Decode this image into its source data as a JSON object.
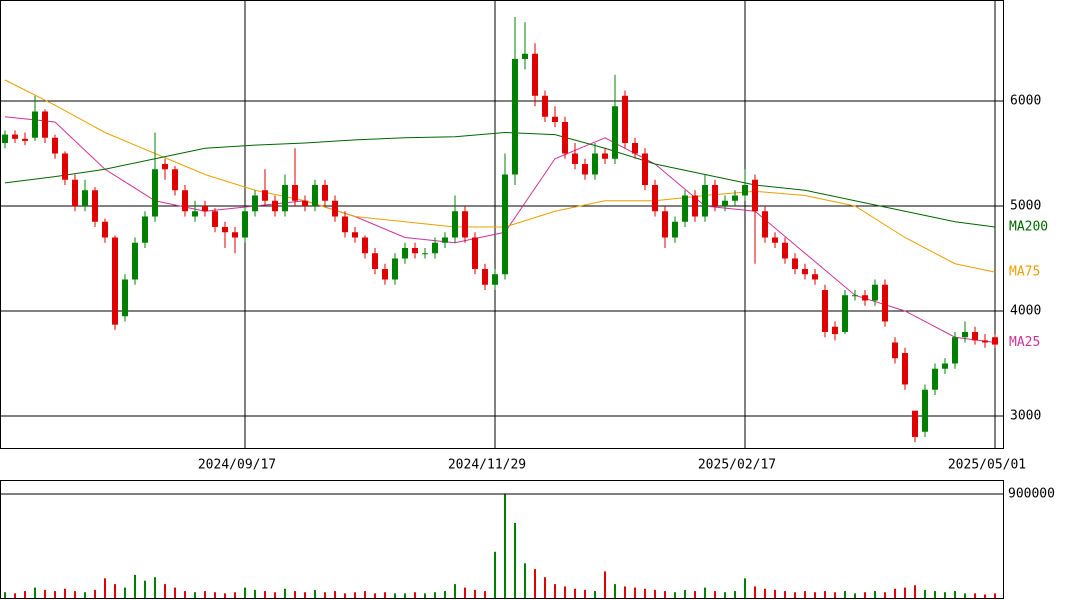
{
  "chart_data": [
    {
      "type": "candlestick",
      "categories": [
        null,
        null,
        null,
        null,
        null,
        null,
        null,
        null,
        null,
        null,
        null,
        null,
        null,
        null,
        null,
        null,
        null,
        null,
        null,
        null,
        null,
        null,
        null,
        null,
        "2024/09/17",
        null,
        null,
        null,
        null,
        null,
        null,
        null,
        null,
        null,
        null,
        null,
        null,
        null,
        null,
        null,
        null,
        null,
        null,
        null,
        null,
        null,
        null,
        null,
        null,
        "2024/11/29",
        null,
        null,
        null,
        null,
        null,
        null,
        null,
        null,
        null,
        null,
        null,
        null,
        null,
        null,
        null,
        null,
        null,
        null,
        null,
        null,
        null,
        null,
        null,
        null,
        "2025/02/17",
        null,
        null,
        null,
        null,
        null,
        null,
        null,
        null,
        null,
        null,
        null,
        null,
        null,
        null,
        null,
        null,
        null,
        null,
        null,
        null,
        null,
        null,
        null,
        null,
        "2025/05/01"
      ],
      "open": [
        5600,
        5680,
        5640,
        5650,
        5900,
        5650,
        5500,
        5250,
        5000,
        5150,
        4850,
        4700,
        3950,
        4300,
        4650,
        4900,
        5400,
        5350,
        5150,
        4900,
        5000,
        4950,
        4800,
        4750,
        4700,
        4950,
        5150,
        5050,
        4950,
        5200,
        5050,
        5000,
        5200,
        5050,
        4900,
        4750,
        4700,
        4550,
        4400,
        4300,
        4500,
        4600,
        4550,
        4550,
        4650,
        4700,
        4950,
        4700,
        4400,
        4250,
        4350,
        5300,
        6400,
        6450,
        6050,
        5850,
        5800,
        5500,
        5400,
        5300,
        5500,
        5450,
        6050,
        5600,
        5500,
        5200,
        4950,
        4700,
        4850,
        5100,
        4900,
        5200,
        5000,
        5050,
        5100,
        5250,
        4950,
        4700,
        4650,
        4500,
        4400,
        4350,
        4200,
        3850,
        3800,
        4150,
        4150,
        4100,
        4250,
        3700,
        3600,
        3050,
        2850,
        3250,
        3450,
        3500,
        3750,
        3800,
        3720,
        3750
      ],
      "high": [
        5720,
        5720,
        5700,
        6050,
        5920,
        5680,
        5520,
        5300,
        5250,
        5180,
        4880,
        4720,
        4350,
        4700,
        4950,
        5700,
        5450,
        5380,
        5200,
        5050,
        5050,
        4980,
        4850,
        4800,
        5000,
        5150,
        5350,
        5100,
        5300,
        5550,
        5100,
        5250,
        5250,
        5100,
        4950,
        4800,
        4720,
        4600,
        4450,
        4550,
        4650,
        4650,
        4600,
        4700,
        4750,
        5100,
        5000,
        4750,
        4450,
        4400,
        5500,
        6800,
        6750,
        6550,
        6100,
        5950,
        5850,
        5600,
        5450,
        5600,
        5550,
        6250,
        6100,
        5650,
        5550,
        5250,
        5000,
        4900,
        5150,
        5150,
        5300,
        5250,
        5100,
        5150,
        5350,
        5300,
        5000,
        4750,
        4700,
        4550,
        4450,
        4400,
        4250,
        3900,
        4200,
        4200,
        4200,
        4300,
        4300,
        3750,
        3650,
        3050,
        3300,
        3500,
        3550,
        3800,
        3900,
        3850,
        3780,
        3780
      ],
      "low": [
        5550,
        5600,
        5580,
        5620,
        5600,
        5450,
        5200,
        4950,
        4950,
        4800,
        4650,
        3820,
        3900,
        4250,
        4600,
        4850,
        5250,
        5100,
        4900,
        4850,
        4900,
        4750,
        4600,
        4550,
        4650,
        4900,
        5000,
        4900,
        4900,
        5000,
        4950,
        4950,
        5000,
        4850,
        4700,
        4650,
        4500,
        4350,
        4250,
        4250,
        4450,
        4500,
        4500,
        4500,
        4600,
        4650,
        4650,
        4350,
        4200,
        4200,
        4300,
        5200,
        6300,
        5950,
        5800,
        5750,
        5450,
        5350,
        5250,
        5250,
        5400,
        5400,
        5550,
        5450,
        5150,
        4900,
        4600,
        4650,
        4800,
        4850,
        4850,
        4950,
        4950,
        5000,
        5050,
        4450,
        4650,
        4600,
        4450,
        4350,
        4300,
        4250,
        3750,
        3720,
        3780,
        4100,
        4050,
        4050,
        3850,
        3500,
        3250,
        2750,
        2800,
        3200,
        3400,
        3450,
        3700,
        3680,
        3650,
        3650
      ],
      "close": [
        5680,
        5640,
        5620,
        5900,
        5650,
        5500,
        5250,
        5000,
        5150,
        4850,
        4700,
        3870,
        4300,
        4650,
        4900,
        5350,
        5350,
        5150,
        4950,
        4950,
        4950,
        4800,
        4750,
        4700,
        4950,
        5100,
        5050,
        4950,
        5200,
        5050,
        5000,
        5200,
        5050,
        4900,
        4750,
        4700,
        4550,
        4400,
        4300,
        4500,
        4600,
        4550,
        4550,
        4650,
        4700,
        4950,
        4700,
        4400,
        4250,
        4350,
        5300,
        6400,
        6450,
        6050,
        5850,
        5800,
        5500,
        5400,
        5300,
        5500,
        5450,
        5950,
        5600,
        5500,
        5200,
        4950,
        4700,
        4850,
        5100,
        4900,
        5200,
        5000,
        5050,
        5100,
        5200,
        4950,
        4700,
        4650,
        4500,
        4400,
        4350,
        4300,
        3800,
        3780,
        4150,
        4150,
        4100,
        4250,
        3900,
        3550,
        3300,
        2800,
        3250,
        3450,
        3500,
        3750,
        3800,
        3720,
        3700,
        3680
      ],
      "up_color": "#008000",
      "down_color": "#e00000",
      "series": [
        {
          "name": "MA25",
          "color": "#cc3399",
          "x": [
            0,
            5,
            10,
            15,
            20,
            25,
            30,
            35,
            40,
            45,
            50,
            55,
            60,
            65,
            70,
            75,
            80,
            85,
            90,
            95,
            99
          ],
          "values": [
            5850,
            5800,
            5350,
            5050,
            4950,
            5000,
            5050,
            4900,
            4700,
            4650,
            4750,
            5450,
            5650,
            5400,
            5000,
            4950,
            4550,
            4150,
            4000,
            3750,
            3700
          ]
        },
        {
          "name": "MA75",
          "color": "#e8a000",
          "x": [
            0,
            5,
            10,
            15,
            20,
            25,
            30,
            35,
            40,
            45,
            50,
            55,
            60,
            65,
            70,
            75,
            80,
            85,
            90,
            95,
            99
          ],
          "values": [
            6200,
            5960,
            5700,
            5500,
            5300,
            5150,
            5050,
            4900,
            4850,
            4800,
            4800,
            4950,
            5050,
            5050,
            5100,
            5140,
            5100,
            5000,
            4700,
            4450,
            4370
          ]
        },
        {
          "name": "MA200",
          "color": "#006600",
          "x": [
            0,
            5,
            10,
            15,
            20,
            25,
            30,
            35,
            40,
            45,
            50,
            55,
            60,
            65,
            70,
            75,
            80,
            85,
            90,
            95,
            99
          ],
          "values": [
            5220,
            5280,
            5350,
            5450,
            5550,
            5580,
            5600,
            5630,
            5650,
            5660,
            5700,
            5680,
            5550,
            5400,
            5300,
            5200,
            5150,
            5050,
            4950,
            4850,
            4800
          ]
        }
      ],
      "ylim": [
        2695,
        6962
      ],
      "yticks": [
        3000,
        4000,
        5000,
        6000
      ]
    },
    {
      "type": "bar",
      "values": [
        50000,
        40000,
        60000,
        90000,
        70000,
        60000,
        80000,
        60000,
        50000,
        70000,
        170000,
        120000,
        90000,
        200000,
        150000,
        180000,
        120000,
        90000,
        60000,
        50000,
        60000,
        50000,
        40000,
        50000,
        90000,
        70000,
        60000,
        50000,
        80000,
        60000,
        50000,
        70000,
        50000,
        60000,
        40000,
        50000,
        60000,
        40000,
        50000,
        40000,
        40000,
        50000,
        40000,
        50000,
        60000,
        120000,
        90000,
        70000,
        60000,
        400000,
        900000,
        650000,
        300000,
        250000,
        180000,
        120000,
        100000,
        80000,
        70000,
        60000,
        230000,
        120000,
        100000,
        90000,
        80000,
        70000,
        60000,
        50000,
        70000,
        60000,
        90000,
        60000,
        50000,
        60000,
        170000,
        100000,
        80000,
        70000,
        60000,
        50000,
        60000,
        50000,
        60000,
        50000,
        60000,
        40000,
        50000,
        60000,
        50000,
        80000,
        90000,
        110000,
        70000,
        60000,
        50000,
        60000,
        40000,
        40000,
        30000,
        40000
      ],
      "ylim": [
        0,
        1021000
      ],
      "yticks": [
        900000
      ]
    }
  ]
}
